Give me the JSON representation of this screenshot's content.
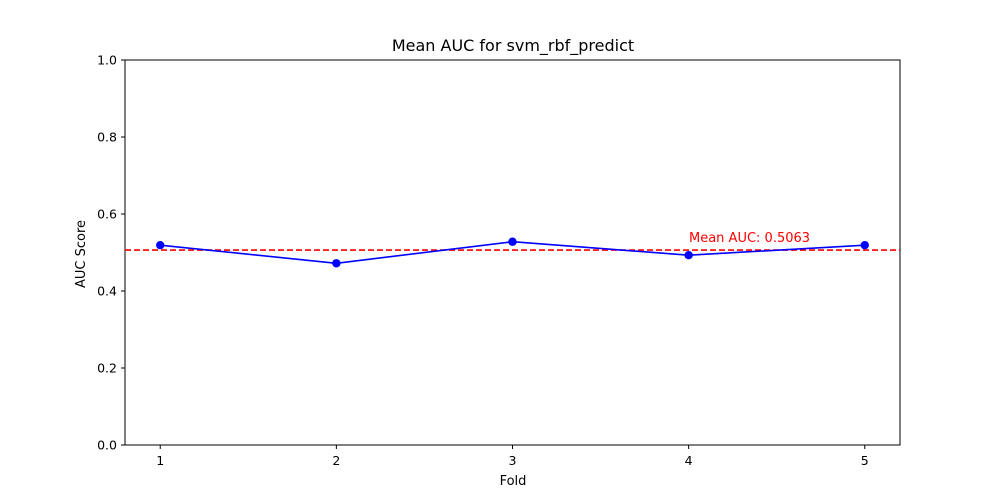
{
  "chart_data": {
    "type": "line",
    "title": "Mean AUC for svm_rbf_predict",
    "xlabel": "Fold",
    "ylabel": "AUC Score",
    "xlim": [
      0.8,
      5.2
    ],
    "ylim": [
      0.0,
      1.0
    ],
    "x_ticks": [
      1,
      2,
      3,
      4,
      5
    ],
    "y_ticks": [
      "0.0",
      "0.2",
      "0.4",
      "0.6",
      "0.8",
      "1.0"
    ],
    "grid": false,
    "series": [
      {
        "x": [
          1,
          2,
          3,
          4,
          5
        ],
        "values": [
          0.519,
          0.472,
          0.528,
          0.493,
          0.519
        ],
        "color": "#0000ff",
        "marker": "circle"
      }
    ],
    "mean_line": {
      "value": 0.5063,
      "color": "#ff0000",
      "style": "dashed"
    },
    "annotation": {
      "text": "Mean AUC: 0.5063",
      "x": 4,
      "y": 0.5063,
      "color": "#ff0000"
    }
  }
}
